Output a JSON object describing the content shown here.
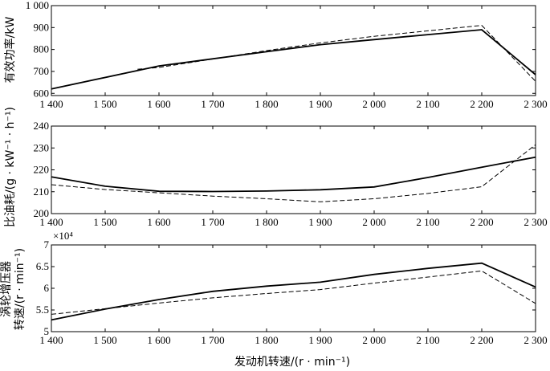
{
  "chart_data": [
    {
      "type": "line",
      "id": "power",
      "ylabel": "有效功率/kW",
      "ylim": [
        590,
        1000
      ],
      "yticks": [
        600,
        700,
        800,
        900,
        "1 000"
      ],
      "ytick_values": [
        600,
        700,
        800,
        900,
        1000
      ],
      "x": [
        1400,
        1500,
        1600,
        1700,
        1800,
        1900,
        2000,
        2100,
        2200,
        2300
      ],
      "x_tick_labels": [
        "1 400",
        "1 500",
        "1 600",
        "1 700",
        "1 800",
        "1 900",
        "2 000",
        "2 100",
        "2 200",
        "2 300"
      ],
      "xlim": [
        1400,
        2300
      ],
      "series": [
        {
          "style": "solid",
          "x": [
            1400,
            1600,
            1800,
            1900,
            2000,
            2100,
            2200,
            2300
          ],
          "values": [
            620,
            725,
            790,
            822,
            845,
            868,
            890,
            685
          ]
        },
        {
          "style": "dashed",
          "x": [
            1560,
            1600,
            1800,
            1900,
            2000,
            2100,
            2200,
            2300
          ],
          "values": [
            710,
            718,
            795,
            830,
            860,
            885,
            910,
            655
          ]
        }
      ]
    },
    {
      "type": "line",
      "id": "bsfc",
      "ylabel": "比油耗/(g · kW⁻¹ · h⁻¹)",
      "ylim": [
        200,
        240
      ],
      "yticks": [
        200,
        210,
        220,
        230,
        240
      ],
      "ytick_values": [
        200,
        210,
        220,
        230,
        240
      ],
      "x": [
        1400,
        1500,
        1600,
        1700,
        1800,
        1900,
        2000,
        2100,
        2200,
        2300
      ],
      "x_tick_labels": [
        "1 400",
        "1 500",
        "1 600",
        "1 700",
        "1 800",
        "1 900",
        "2 000",
        "2 100",
        "2 200",
        "2 300"
      ],
      "xlim": [
        1400,
        2300
      ],
      "series": [
        {
          "style": "solid",
          "x": [
            1400,
            1500,
            1600,
            1700,
            1800,
            1900,
            2000,
            2100,
            2200,
            2300
          ],
          "values": [
            216.8,
            212.5,
            210.2,
            210.1,
            210.3,
            210.9,
            212.2,
            216.5,
            221.2,
            225.8
          ]
        },
        {
          "style": "dashed",
          "x": [
            1400,
            1500,
            1600,
            1700,
            1800,
            1900,
            2000,
            2100,
            2200,
            2300
          ],
          "values": [
            213.2,
            211.0,
            209.5,
            208.0,
            206.8,
            205.4,
            206.8,
            209.2,
            212.3,
            231.5
          ]
        }
      ]
    },
    {
      "type": "line",
      "id": "turbo",
      "ylabel_line1": "涡轮增压器",
      "ylabel_line2": "转速/(r · min⁻¹)",
      "scale_label": "×10⁴",
      "ylim": [
        5,
        7
      ],
      "yticks": [
        5,
        5.5,
        6,
        6.5,
        7
      ],
      "ytick_values": [
        5,
        5.5,
        6,
        6.5,
        7
      ],
      "x": [
        1400,
        1500,
        1600,
        1700,
        1800,
        1900,
        2000,
        2100,
        2200,
        2300
      ],
      "x_tick_labels": [
        "1 400",
        "1 500",
        "1 600",
        "1 700",
        "1 800",
        "1 900",
        "2 000",
        "2 100",
        "2 200",
        "2 300"
      ],
      "xlim": [
        1400,
        2300
      ],
      "xlabel": "发动机转速/(r · min⁻¹)",
      "series": [
        {
          "style": "solid",
          "x": [
            1400,
            1500,
            1600,
            1700,
            1800,
            1900,
            2000,
            2100,
            2200,
            2300
          ],
          "values": [
            5.27,
            5.52,
            5.74,
            5.93,
            6.05,
            6.14,
            6.32,
            6.46,
            6.58,
            6.03
          ]
        },
        {
          "style": "dashed",
          "x": [
            1400,
            1500,
            1600,
            1700,
            1800,
            1900,
            2000,
            2100,
            2200,
            2300
          ],
          "values": [
            5.4,
            5.53,
            5.66,
            5.78,
            5.88,
            5.97,
            6.12,
            6.26,
            6.4,
            5.65
          ]
        }
      ]
    }
  ]
}
